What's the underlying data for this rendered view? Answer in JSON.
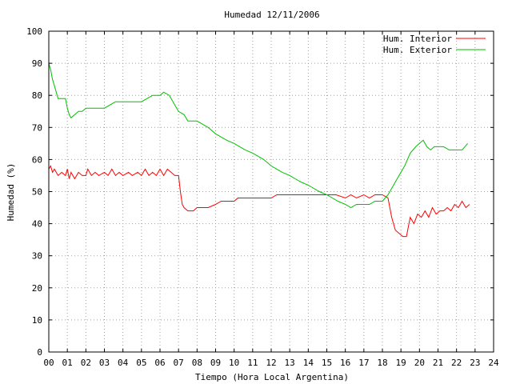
{
  "chart_data": {
    "type": "line",
    "title": "Humedad 12/11/2006",
    "xlabel": "Tiempo (Hora Local Argentina)",
    "ylabel": "Humedad (%)",
    "xlim": [
      0,
      24
    ],
    "ylim": [
      0,
      100
    ],
    "x_ticks": [
      "00",
      "01",
      "02",
      "03",
      "04",
      "05",
      "06",
      "07",
      "08",
      "09",
      "10",
      "11",
      "12",
      "13",
      "14",
      "15",
      "16",
      "17",
      "18",
      "19",
      "20",
      "21",
      "22",
      "23",
      "24"
    ],
    "y_ticks": [
      "0",
      "10",
      "20",
      "30",
      "40",
      "50",
      "60",
      "70",
      "80",
      "90",
      "100"
    ],
    "grid": true,
    "legend_position": "top-right",
    "colors": {
      "interior": "#ff0000",
      "exterior": "#00c000",
      "grid": "#a0a0a0"
    },
    "series": [
      {
        "name": "Hum. Interior",
        "color": "#ff0000",
        "points": [
          [
            0.0,
            57
          ],
          [
            0.1,
            58
          ],
          [
            0.2,
            56
          ],
          [
            0.3,
            57
          ],
          [
            0.4,
            56
          ],
          [
            0.5,
            55
          ],
          [
            0.7,
            56
          ],
          [
            0.9,
            55
          ],
          [
            1.0,
            57
          ],
          [
            1.1,
            54
          ],
          [
            1.2,
            56
          ],
          [
            1.4,
            54
          ],
          [
            1.6,
            56
          ],
          [
            1.8,
            55
          ],
          [
            2.0,
            55
          ],
          [
            2.1,
            57
          ],
          [
            2.3,
            55
          ],
          [
            2.5,
            56
          ],
          [
            2.7,
            55
          ],
          [
            3.0,
            56
          ],
          [
            3.2,
            55
          ],
          [
            3.4,
            57
          ],
          [
            3.6,
            55
          ],
          [
            3.8,
            56
          ],
          [
            4.0,
            55
          ],
          [
            4.3,
            56
          ],
          [
            4.5,
            55
          ],
          [
            4.8,
            56
          ],
          [
            5.0,
            55
          ],
          [
            5.2,
            57
          ],
          [
            5.4,
            55
          ],
          [
            5.6,
            56
          ],
          [
            5.8,
            55
          ],
          [
            6.0,
            57
          ],
          [
            6.2,
            55
          ],
          [
            6.4,
            57
          ],
          [
            6.6,
            56
          ],
          [
            6.8,
            55
          ],
          [
            7.0,
            55
          ],
          [
            7.1,
            50
          ],
          [
            7.2,
            46
          ],
          [
            7.3,
            45
          ],
          [
            7.5,
            44
          ],
          [
            7.8,
            44
          ],
          [
            8.0,
            45
          ],
          [
            8.3,
            45
          ],
          [
            8.6,
            45
          ],
          [
            9.0,
            46
          ],
          [
            9.3,
            47
          ],
          [
            9.6,
            47
          ],
          [
            10.0,
            47
          ],
          [
            10.2,
            48
          ],
          [
            10.6,
            48
          ],
          [
            11.0,
            48
          ],
          [
            11.5,
            48
          ],
          [
            12.0,
            48
          ],
          [
            12.3,
            49
          ],
          [
            12.8,
            49
          ],
          [
            13.2,
            49
          ],
          [
            13.6,
            49
          ],
          [
            14.0,
            49
          ],
          [
            14.5,
            49
          ],
          [
            15.0,
            49
          ],
          [
            15.5,
            49
          ],
          [
            16.0,
            48
          ],
          [
            16.3,
            49
          ],
          [
            16.6,
            48
          ],
          [
            17.0,
            49
          ],
          [
            17.3,
            48
          ],
          [
            17.6,
            49
          ],
          [
            18.0,
            49
          ],
          [
            18.3,
            48
          ],
          [
            18.5,
            42
          ],
          [
            18.7,
            38
          ],
          [
            18.9,
            37
          ],
          [
            19.1,
            36
          ],
          [
            19.3,
            36
          ],
          [
            19.4,
            39
          ],
          [
            19.5,
            42
          ],
          [
            19.7,
            40
          ],
          [
            19.9,
            43
          ],
          [
            20.1,
            42
          ],
          [
            20.3,
            44
          ],
          [
            20.5,
            42
          ],
          [
            20.7,
            45
          ],
          [
            20.9,
            43
          ],
          [
            21.1,
            44
          ],
          [
            21.3,
            44
          ],
          [
            21.5,
            45
          ],
          [
            21.7,
            44
          ],
          [
            21.9,
            46
          ],
          [
            22.1,
            45
          ],
          [
            22.3,
            47
          ],
          [
            22.5,
            45
          ],
          [
            22.7,
            46
          ]
        ]
      },
      {
        "name": "Hum. Exterior",
        "color": "#00c000",
        "points": [
          [
            0.0,
            90
          ],
          [
            0.1,
            88
          ],
          [
            0.2,
            85
          ],
          [
            0.3,
            83
          ],
          [
            0.4,
            81
          ],
          [
            0.5,
            79
          ],
          [
            0.9,
            79
          ],
          [
            1.0,
            76
          ],
          [
            1.1,
            74
          ],
          [
            1.2,
            73
          ],
          [
            1.4,
            74
          ],
          [
            1.6,
            75
          ],
          [
            1.8,
            75
          ],
          [
            2.0,
            76
          ],
          [
            2.5,
            76
          ],
          [
            3.0,
            76
          ],
          [
            3.3,
            77
          ],
          [
            3.6,
            78
          ],
          [
            4.0,
            78
          ],
          [
            4.4,
            78
          ],
          [
            4.8,
            78
          ],
          [
            5.0,
            78
          ],
          [
            5.3,
            79
          ],
          [
            5.6,
            80
          ],
          [
            6.0,
            80
          ],
          [
            6.2,
            81
          ],
          [
            6.5,
            80
          ],
          [
            6.8,
            77
          ],
          [
            7.0,
            75
          ],
          [
            7.3,
            74
          ],
          [
            7.5,
            72
          ],
          [
            8.0,
            72
          ],
          [
            8.3,
            71
          ],
          [
            8.6,
            70
          ],
          [
            9.0,
            68
          ],
          [
            9.3,
            67
          ],
          [
            9.6,
            66
          ],
          [
            10.0,
            65
          ],
          [
            10.3,
            64
          ],
          [
            10.6,
            63
          ],
          [
            11.0,
            62
          ],
          [
            11.3,
            61
          ],
          [
            11.6,
            60
          ],
          [
            12.0,
            58
          ],
          [
            12.3,
            57
          ],
          [
            12.6,
            56
          ],
          [
            13.0,
            55
          ],
          [
            13.3,
            54
          ],
          [
            13.6,
            53
          ],
          [
            14.0,
            52
          ],
          [
            14.3,
            51
          ],
          [
            14.6,
            50
          ],
          [
            15.0,
            49
          ],
          [
            15.3,
            48
          ],
          [
            15.6,
            47
          ],
          [
            16.0,
            46
          ],
          [
            16.3,
            45
          ],
          [
            16.6,
            46
          ],
          [
            17.0,
            46
          ],
          [
            17.3,
            46
          ],
          [
            17.6,
            47
          ],
          [
            18.0,
            47
          ],
          [
            18.3,
            49
          ],
          [
            18.6,
            52
          ],
          [
            18.9,
            55
          ],
          [
            19.2,
            58
          ],
          [
            19.5,
            62
          ],
          [
            19.8,
            64
          ],
          [
            20.0,
            65
          ],
          [
            20.2,
            66
          ],
          [
            20.4,
            64
          ],
          [
            20.6,
            63
          ],
          [
            20.8,
            64
          ],
          [
            21.0,
            64
          ],
          [
            21.3,
            64
          ],
          [
            21.6,
            63
          ],
          [
            22.0,
            63
          ],
          [
            22.3,
            63
          ],
          [
            22.6,
            65
          ]
        ]
      }
    ]
  }
}
